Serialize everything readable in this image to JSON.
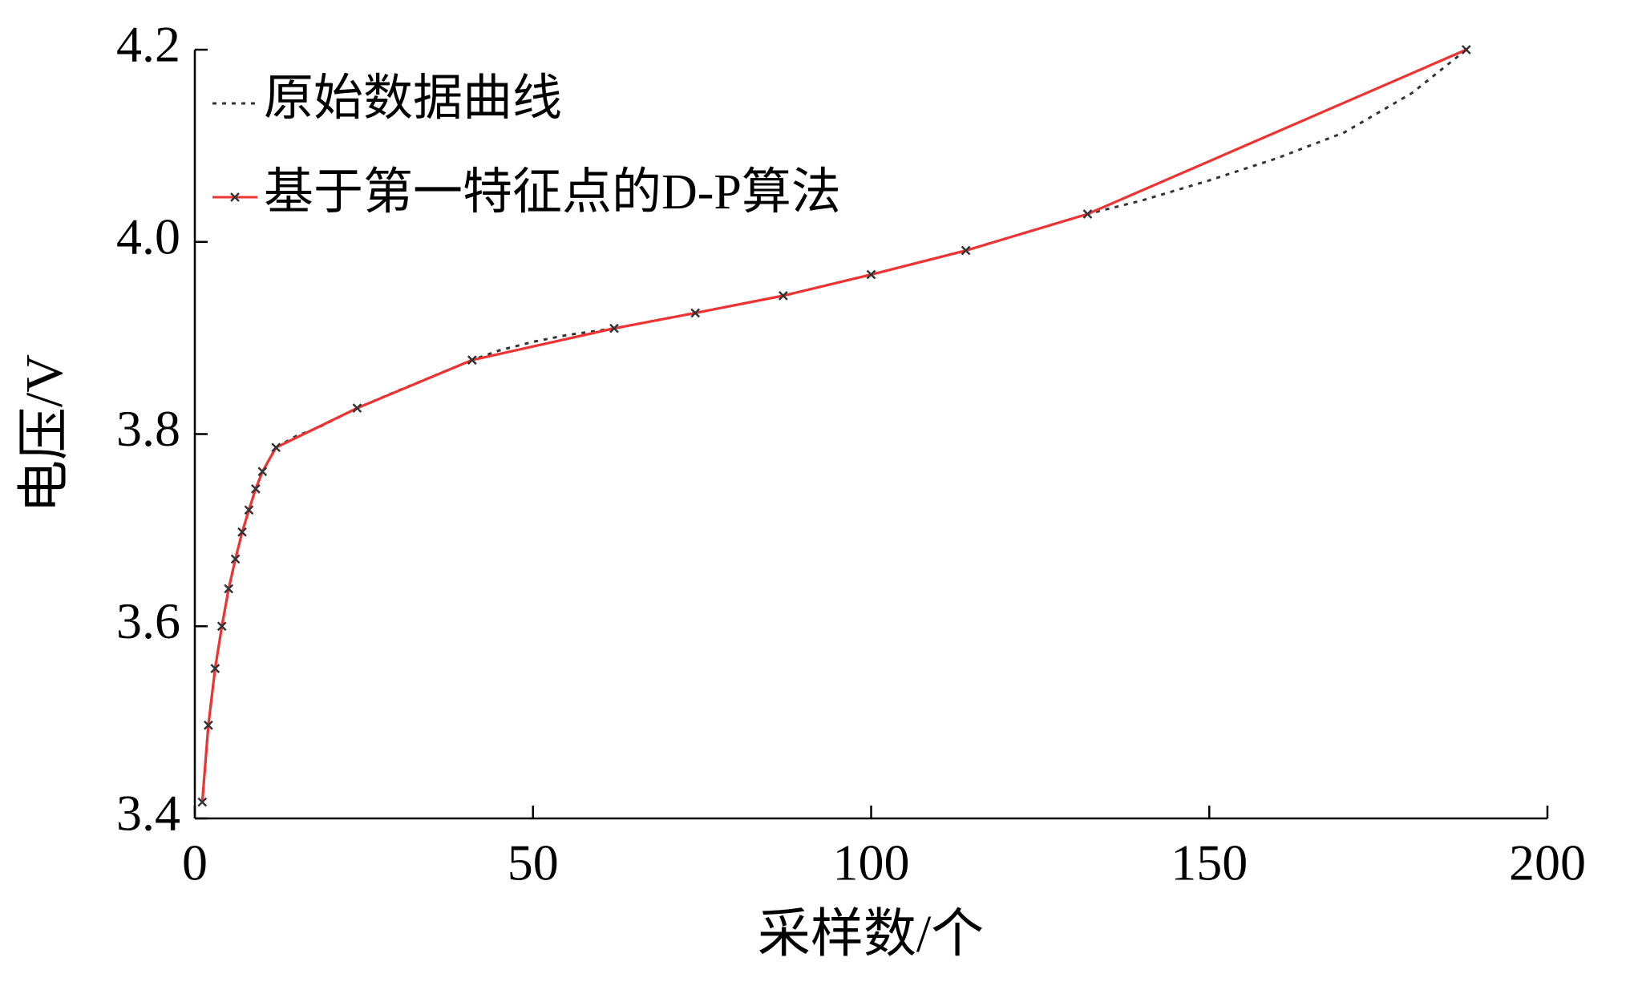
{
  "chart_data": {
    "type": "line",
    "xlabel": "采样数/个",
    "ylabel": "电压/V",
    "xlim": [
      0,
      200
    ],
    "xticks": [
      0,
      50,
      100,
      150,
      200
    ],
    "ylim": [
      3.4,
      4.2
    ],
    "yticks": [
      3.4,
      3.6,
      3.8,
      {
        "value": 4,
        "label": "4.0"
      },
      4.2
    ],
    "grid": false,
    "legend": "upper left",
    "series": [
      {
        "name": "原始数据曲线",
        "color": "#333333",
        "style": "dotted",
        "x": [
          1.1,
          2,
          3,
          4,
          5,
          6,
          7,
          8,
          9,
          10,
          12,
          15,
          18,
          24,
          30,
          41,
          45,
          50,
          55,
          62,
          74,
          87,
          100,
          114,
          132,
          140,
          150,
          160,
          170,
          180,
          188
        ],
        "values": [
          3.417,
          3.497,
          3.556,
          3.6,
          3.639,
          3.67,
          3.698,
          3.721,
          3.743,
          3.761,
          3.786,
          3.798,
          3.806,
          3.827,
          3.845,
          3.877,
          3.887,
          3.896,
          3.903,
          3.91,
          3.926,
          3.944,
          3.966,
          3.991,
          4.029,
          4.043,
          4.064,
          4.087,
          4.114,
          4.155,
          4.2
        ]
      },
      {
        "name": "基于第一特征点的D-P算法",
        "color": "#ee3333",
        "style": "solid",
        "marker": "x",
        "marker_color": "#333333",
        "x": [
          1.1,
          2,
          3,
          4,
          5,
          6,
          7,
          8,
          9,
          10,
          12,
          24,
          41,
          62,
          74,
          87,
          100,
          114,
          132,
          188
        ],
        "values": [
          3.417,
          3.497,
          3.556,
          3.6,
          3.639,
          3.67,
          3.698,
          3.721,
          3.743,
          3.761,
          3.786,
          3.827,
          3.877,
          3.91,
          3.926,
          3.944,
          3.966,
          3.991,
          4.029,
          4.2
        ]
      }
    ]
  }
}
